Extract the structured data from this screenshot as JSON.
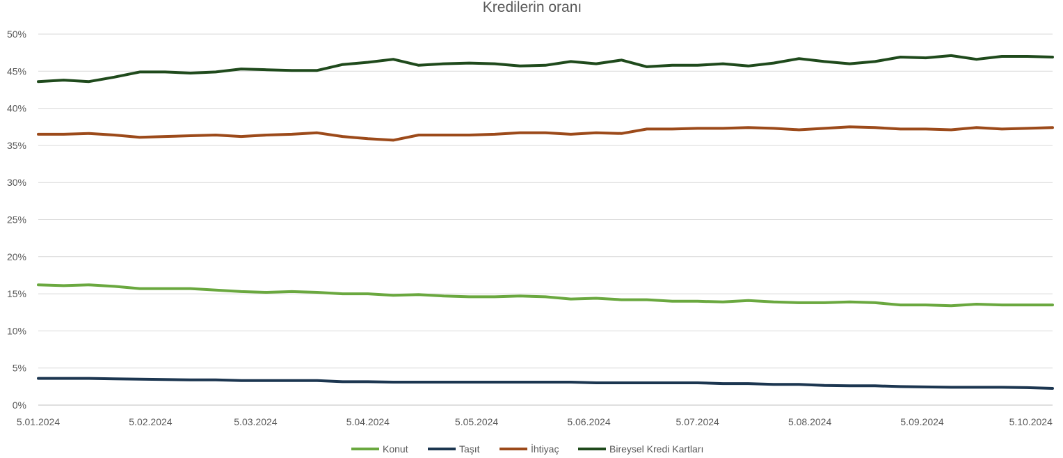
{
  "chart_data": {
    "type": "line",
    "title": "Kredilerin oranı",
    "xlabel": "",
    "ylabel": "",
    "ylim": [
      0,
      50
    ],
    "y_ticks": [
      "0%",
      "5%",
      "10%",
      "15%",
      "20%",
      "25%",
      "30%",
      "35%",
      "40%",
      "45%",
      "50%"
    ],
    "x_ticks": [
      "5.01.2024",
      "5.02.2024",
      "5.03.2024",
      "5.04.2024",
      "5.05.2024",
      "5.06.2024",
      "5.07.2024",
      "5.08.2024",
      "5.09.2024",
      "5.10.2024"
    ],
    "x_tick_days": [
      0,
      31,
      60,
      91,
      121,
      152,
      182,
      213,
      244,
      274
    ],
    "grid": true,
    "legend_position": "bottom",
    "x": [
      "5.01.2024",
      "12.01.2024",
      "19.01.2024",
      "26.01.2024",
      "2.02.2024",
      "9.02.2024",
      "16.02.2024",
      "23.02.2024",
      "1.03.2024",
      "8.03.2024",
      "15.03.2024",
      "22.03.2024",
      "29.03.2024",
      "5.04.2024",
      "12.04.2024",
      "19.04.2024",
      "26.04.2024",
      "3.05.2024",
      "10.05.2024",
      "17.05.2024",
      "24.05.2024",
      "31.05.2024",
      "7.06.2024",
      "14.06.2024",
      "21.06.2024",
      "28.06.2024",
      "5.07.2024",
      "12.07.2024",
      "19.07.2024",
      "26.07.2024",
      "2.08.2024",
      "9.08.2024",
      "16.08.2024",
      "23.08.2024",
      "30.08.2024",
      "6.09.2024",
      "13.09.2024",
      "20.09.2024",
      "27.09.2024",
      "4.10.2024",
      "11.10.2024"
    ],
    "series": [
      {
        "name": "Konut",
        "color": "#6aa83f",
        "values": [
          16.2,
          16.1,
          16.2,
          16.0,
          15.7,
          15.7,
          15.7,
          15.5,
          15.3,
          15.2,
          15.3,
          15.2,
          15.0,
          15.0,
          14.8,
          14.9,
          14.7,
          14.6,
          14.6,
          14.7,
          14.6,
          14.3,
          14.4,
          14.2,
          14.2,
          14.0,
          14.0,
          13.9,
          14.1,
          13.9,
          13.8,
          13.8,
          13.9,
          13.8,
          13.5,
          13.5,
          13.4,
          13.6,
          13.5,
          13.5,
          13.5
        ]
      },
      {
        "name": "Taşıt",
        "color": "#1c3650",
        "values": [
          3.6,
          3.6,
          3.6,
          3.55,
          3.5,
          3.45,
          3.4,
          3.4,
          3.3,
          3.3,
          3.3,
          3.3,
          3.15,
          3.15,
          3.1,
          3.1,
          3.1,
          3.1,
          3.1,
          3.1,
          3.1,
          3.1,
          3.0,
          3.0,
          3.0,
          3.0,
          3.0,
          2.9,
          2.9,
          2.8,
          2.8,
          2.65,
          2.6,
          2.6,
          2.5,
          2.45,
          2.4,
          2.4,
          2.4,
          2.35,
          2.25
        ]
      },
      {
        "name": "İhtiyaç",
        "color": "#9c4a1a",
        "values": [
          36.5,
          36.5,
          36.6,
          36.4,
          36.1,
          36.2,
          36.3,
          36.4,
          36.2,
          36.4,
          36.5,
          36.7,
          36.2,
          35.9,
          35.7,
          36.4,
          36.4,
          36.4,
          36.5,
          36.7,
          36.7,
          36.5,
          36.7,
          36.6,
          37.2,
          37.2,
          37.3,
          37.3,
          37.4,
          37.3,
          37.1,
          37.3,
          37.5,
          37.4,
          37.2,
          37.2,
          37.1,
          37.4,
          37.2,
          37.3,
          37.4
        ]
      },
      {
        "name": "Bireysel Kredi Kartları",
        "color": "#1f4a1c",
        "values": [
          43.6,
          43.8,
          43.6,
          44.2,
          44.9,
          44.9,
          44.75,
          44.9,
          45.3,
          45.2,
          45.1,
          45.1,
          45.9,
          46.2,
          46.6,
          45.8,
          46.0,
          46.1,
          46.0,
          45.7,
          45.8,
          46.3,
          46.0,
          46.5,
          45.6,
          45.8,
          45.8,
          46.0,
          45.7,
          46.1,
          46.7,
          46.3,
          46.0,
          46.3,
          46.9,
          46.8,
          47.1,
          46.6,
          47.0,
          47.0,
          46.9
        ]
      }
    ]
  }
}
